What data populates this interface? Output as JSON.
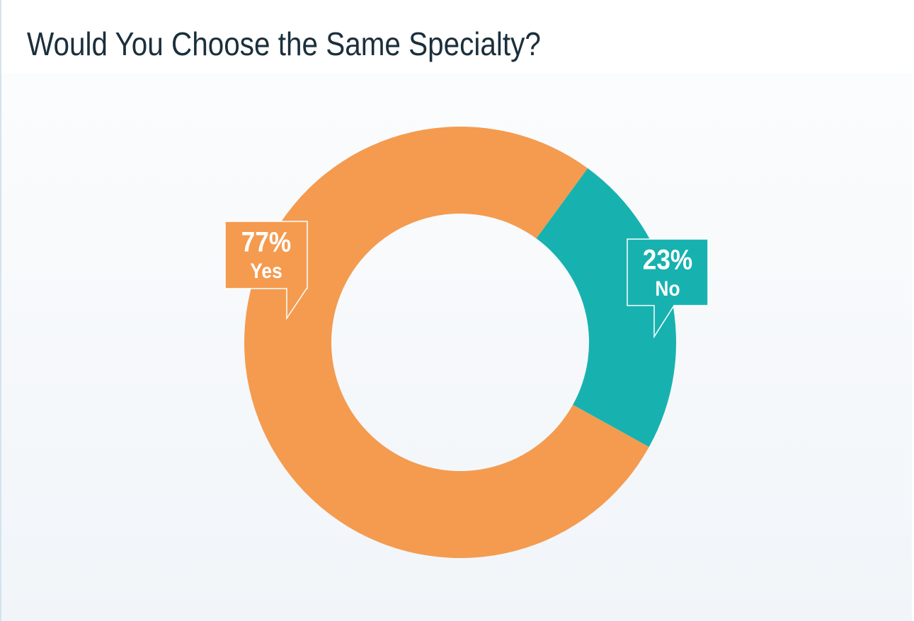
{
  "chart_data": {
    "type": "donut",
    "title": "Would You Choose the Same Specialty?",
    "categories": [
      "Yes",
      "No"
    ],
    "values": [
      77,
      23
    ],
    "value_labels": [
      "77%",
      "23%"
    ],
    "colors": [
      "#f49b50",
      "#17b2b0"
    ]
  }
}
